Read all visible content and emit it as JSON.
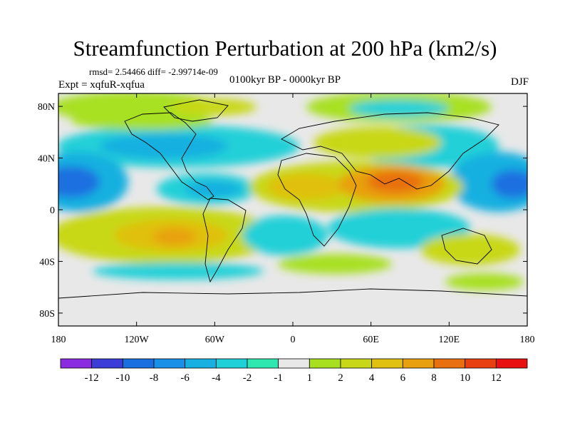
{
  "title": "Streamfunction Perturbation at 200 hPa (km2/s)",
  "stats": "rmsd= 2.54466 diff= -2.99714e-09",
  "experiment": "Expt = xqfuR-xqfua",
  "period": "0100kyr BP - 0000kyr BP",
  "season": "DJF",
  "map": {
    "lat_labels": [
      "80N",
      "40N",
      "0",
      "40S",
      "80S"
    ],
    "lon_labels": [
      "180",
      "120W",
      "60W",
      "0",
      "60E",
      "120E",
      "180"
    ],
    "lat_values": [
      80,
      40,
      0,
      -40,
      -80
    ],
    "lon_values": [
      -180,
      -120,
      -60,
      0,
      60,
      120,
      180
    ],
    "background_color": "#e8e8e8"
  },
  "colorbar": {
    "labels": [
      "-12",
      "-10",
      "-8",
      "-6",
      "-4",
      "-2",
      "-1",
      "1",
      "2",
      "4",
      "6",
      "8",
      "10",
      "12"
    ],
    "colors": [
      "#8a2be2",
      "#3c3cd8",
      "#1a6fe0",
      "#1890e8",
      "#18b0e0",
      "#20d0d8",
      "#2ee8b0",
      "#e8e8e8",
      "#a8e020",
      "#c8d818",
      "#e0c010",
      "#e8a010",
      "#e87010",
      "#e84010",
      "#e81010"
    ]
  },
  "features": [
    {
      "name": "anomaly-arabia-india",
      "lon": 75,
      "lat": 22,
      "value": 9
    },
    {
      "name": "anomaly-north-africa",
      "lon": 20,
      "lat": 20,
      "value": 4
    },
    {
      "name": "anomaly-south-america",
      "lon": -85,
      "lat": -22,
      "value": 5
    },
    {
      "name": "anomaly-north-pacific",
      "lon": -168,
      "lat": 22,
      "value": -8
    },
    {
      "name": "anomaly-west-pacific",
      "lon": 150,
      "lat": 22,
      "value": -6
    },
    {
      "name": "anomaly-caribbean",
      "lon": -50,
      "lat": 18,
      "value": -3
    },
    {
      "name": "anomaly-indian-ocean",
      "lon": 55,
      "lat": -10,
      "value": -3
    },
    {
      "name": "anomaly-arctic-eurasia",
      "lon": 20,
      "lat": 80,
      "value": 2
    },
    {
      "name": "anomaly-australia",
      "lon": 140,
      "lat": -30,
      "value": 3
    }
  ]
}
